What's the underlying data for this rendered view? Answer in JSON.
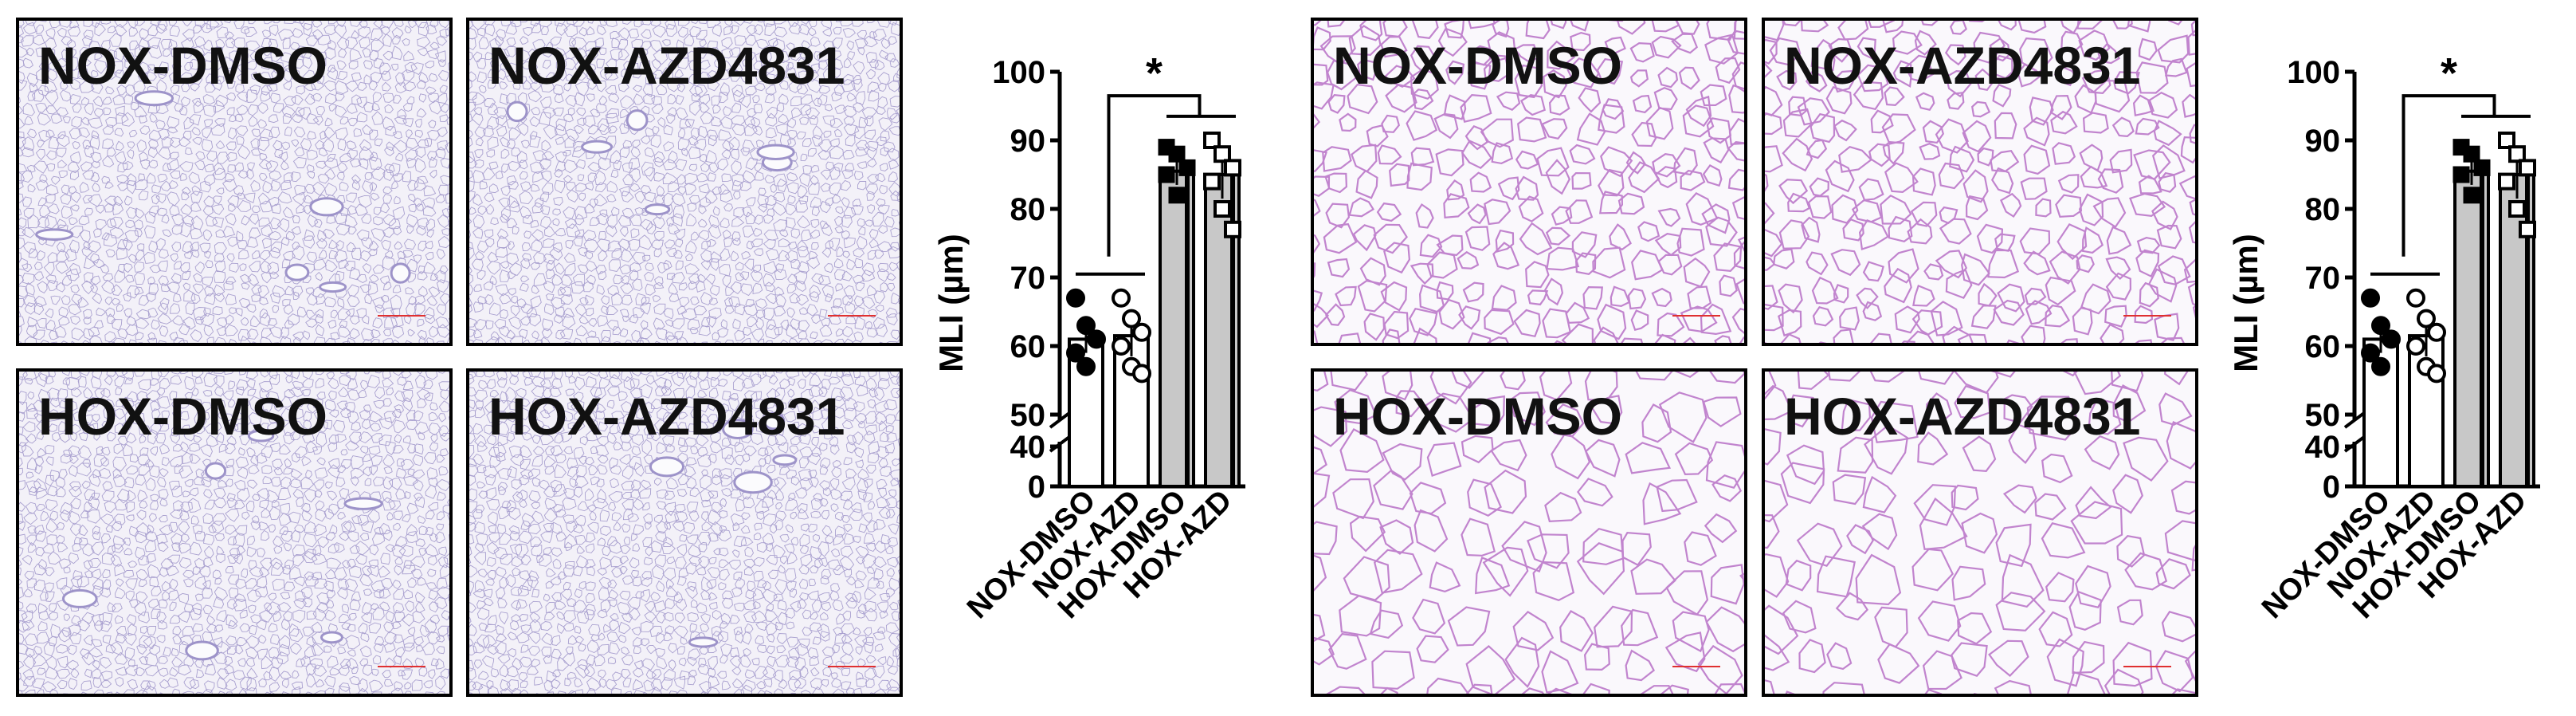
{
  "figure": {
    "low_mag": {
      "panels": [
        {
          "label": "NOX-DMSO"
        },
        {
          "label": "NOX-AZD4831"
        },
        {
          "label": "HOX-DMSO"
        },
        {
          "label": "HOX-AZD4831"
        }
      ]
    },
    "high_mag": {
      "panels": [
        {
          "label": "NOX-DMSO"
        },
        {
          "label": "NOX-AZD4831"
        },
        {
          "label": "HOX-DMSO"
        },
        {
          "label": "HOX-AZD4831"
        }
      ]
    }
  },
  "colors": {
    "tissue_low": "#9d93c9",
    "tissue_high": "#b870c6",
    "bg": "#f3f1f8",
    "bar_hox": "#c8c8c8",
    "scale_bar": "#e03030"
  },
  "chart_data": [
    {
      "type": "bar",
      "ylabel": "MLI (µm)",
      "categories": [
        "NOX-DMSO",
        "NOX-AZD",
        "HOX-DMSO",
        "HOX-AZD"
      ],
      "values": [
        61,
        61.5,
        85.5,
        85
      ],
      "errors": [
        2,
        3,
        2,
        3.5
      ],
      "yticks": [
        0,
        40,
        50,
        60,
        70,
        80,
        90,
        100
      ],
      "ytick_labels": [
        "0",
        "40",
        "50",
        "60",
        "70",
        "80",
        "90",
        "100"
      ],
      "broken_axis": [
        40,
        50
      ],
      "points": [
        [
          67,
          63,
          61,
          59,
          57
        ],
        [
          67,
          64,
          62,
          60,
          57,
          56
        ],
        [
          89,
          88,
          86,
          85,
          82
        ],
        [
          90,
          88,
          86,
          84,
          80,
          77
        ]
      ],
      "significance": "*"
    },
    {
      "type": "bar",
      "ylabel": "MLI (µm)",
      "categories": [
        "NOX-DMSO",
        "NOX-AZD",
        "HOX-DMSO",
        "HOX-AZD"
      ],
      "values": [
        61,
        61.5,
        85.5,
        85
      ],
      "errors": [
        2,
        3,
        2,
        3.5
      ],
      "yticks": [
        0,
        40,
        50,
        60,
        70,
        80,
        90,
        100
      ],
      "ytick_labels": [
        "0",
        "40",
        "50",
        "60",
        "70",
        "80",
        "90",
        "100"
      ],
      "broken_axis": [
        40,
        50
      ],
      "points": [
        [
          67,
          63,
          61,
          59,
          57
        ],
        [
          67,
          64,
          62,
          60,
          57,
          56
        ],
        [
          89,
          88,
          86,
          85,
          82
        ],
        [
          90,
          88,
          86,
          84,
          80,
          77
        ]
      ],
      "significance": "*"
    }
  ]
}
